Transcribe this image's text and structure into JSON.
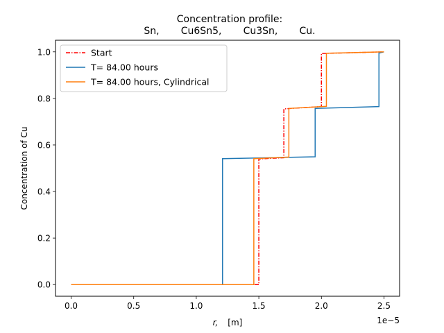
{
  "chart_data": {
    "type": "line",
    "title_line1": "Concentration profile:",
    "title_line2": "Sn,       Cu6Sn5,       Cu3Sn,       Cu.",
    "xlabel_var": "r,",
    "xlabel_unit": "[m]",
    "ylabel": "Concentration of Cu",
    "x_offset_label": "1e−5",
    "xlim": [
      -0.125,
      2.625
    ],
    "ylim": [
      -0.05,
      1.05
    ],
    "x_scale": "1e-5",
    "xticks": [
      0.0,
      0.5,
      1.0,
      1.5,
      2.0,
      2.5
    ],
    "xtick_labels": [
      "0.0",
      "0.5",
      "1.0",
      "1.5",
      "2.0",
      "2.5"
    ],
    "yticks": [
      0.0,
      0.2,
      0.4,
      0.6,
      0.8,
      1.0
    ],
    "ytick_labels": [
      "0.0",
      "0.2",
      "0.4",
      "0.6",
      "0.8",
      "1.0"
    ],
    "grid": false,
    "legend_position": "top-left",
    "series": [
      {
        "name": "Start",
        "color": "#ff0000",
        "style": "dashdot",
        "x": [
          0.0,
          1.5,
          1.5,
          1.7,
          1.7,
          2.0,
          2.0,
          2.5
        ],
        "y": [
          0.0,
          0.0,
          0.54,
          0.545,
          0.755,
          0.765,
          0.993,
          1.0
        ]
      },
      {
        "name": "T= 84.00 hours",
        "color": "#1f77b4",
        "style": "solid",
        "x": [
          0.0,
          1.21,
          1.21,
          1.95,
          1.95,
          2.46,
          2.46,
          2.5
        ],
        "y": [
          0.0,
          0.0,
          0.541,
          0.549,
          0.757,
          0.765,
          0.995,
          1.0
        ]
      },
      {
        "name": "T= 84.00 hours, Cylindrical",
        "color": "#ff7f0e",
        "style": "solid",
        "x": [
          0.0,
          1.46,
          1.46,
          1.74,
          1.74,
          2.04,
          2.04,
          2.5
        ],
        "y": [
          0.0,
          0.0,
          0.541,
          0.548,
          0.757,
          0.766,
          0.994,
          1.0
        ]
      }
    ]
  }
}
